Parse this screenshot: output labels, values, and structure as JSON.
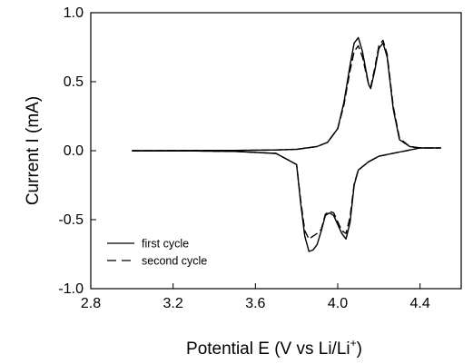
{
  "chart_data": {
    "type": "line",
    "title": "",
    "xlabel": "Potential  E  (V vs Li/Li",
    "xlabel_sup": "+",
    "xlabel_close": ")",
    "ylabel": "Current   I  (mA)",
    "xlim": [
      2.8,
      4.6
    ],
    "ylim": [
      -1.0,
      1.0
    ],
    "x_ticks": [
      2.8,
      3.2,
      3.6,
      4.0,
      4.4
    ],
    "x_tick_labels": [
      "2.8",
      "3.2",
      "3.6",
      "4.0",
      "4.4"
    ],
    "y_ticks": [
      -1.0,
      -0.5,
      0.0,
      0.5,
      1.0
    ],
    "y_tick_labels": [
      "-1.0",
      "-0.5",
      "0.0",
      "0.5",
      "1.0"
    ],
    "grid": false,
    "legend_position": "bottom-left",
    "series": [
      {
        "name": "first cycle",
        "style": "solid",
        "color": "#000000",
        "x": [
          3.0,
          3.5,
          3.7,
          3.8,
          3.9,
          3.95,
          4.0,
          4.03,
          4.06,
          4.08,
          4.1,
          4.12,
          4.15,
          4.16,
          4.18,
          4.2,
          4.22,
          4.24,
          4.27,
          4.3,
          4.35,
          4.4,
          4.5,
          4.5,
          4.4,
          4.3,
          4.2,
          4.15,
          4.1,
          4.08,
          4.06,
          4.04,
          4.02,
          3.98,
          3.96,
          3.94,
          3.92,
          3.9,
          3.88,
          3.86,
          3.84,
          3.82,
          3.8,
          3.7,
          3.5,
          3.3,
          3.0
        ],
        "y": [
          0.0,
          0.002,
          0.005,
          0.01,
          0.03,
          0.06,
          0.16,
          0.35,
          0.62,
          0.78,
          0.82,
          0.72,
          0.48,
          0.45,
          0.58,
          0.74,
          0.78,
          0.68,
          0.3,
          0.08,
          0.03,
          0.02,
          0.02,
          0.02,
          0.02,
          -0.01,
          -0.04,
          -0.08,
          -0.14,
          -0.25,
          -0.52,
          -0.64,
          -0.6,
          -0.47,
          -0.45,
          -0.47,
          -0.58,
          -0.68,
          -0.72,
          -0.73,
          -0.62,
          -0.38,
          -0.1,
          -0.02,
          -0.005,
          -0.002,
          -0.002
        ]
      },
      {
        "name": "second cycle",
        "style": "dashed",
        "color": "#000000",
        "x": [
          3.0,
          3.5,
          3.7,
          3.8,
          3.9,
          3.95,
          4.0,
          4.03,
          4.06,
          4.08,
          4.1,
          4.12,
          4.15,
          4.16,
          4.18,
          4.2,
          4.22,
          4.24,
          4.27,
          4.3,
          4.35,
          4.4,
          4.5,
          4.5,
          4.4,
          4.3,
          4.2,
          4.15,
          4.1,
          4.08,
          4.06,
          4.04,
          4.02,
          3.98,
          3.96,
          3.94,
          3.92,
          3.9,
          3.88,
          3.86,
          3.84,
          3.82,
          3.8,
          3.7,
          3.5,
          3.3,
          3.0
        ],
        "y": [
          0.0,
          0.002,
          0.005,
          0.01,
          0.03,
          0.06,
          0.16,
          0.33,
          0.58,
          0.72,
          0.76,
          0.68,
          0.48,
          0.46,
          0.6,
          0.76,
          0.8,
          0.7,
          0.32,
          0.09,
          0.03,
          0.02,
          0.02,
          0.02,
          0.02,
          -0.01,
          -0.04,
          -0.08,
          -0.14,
          -0.24,
          -0.48,
          -0.6,
          -0.58,
          -0.45,
          -0.44,
          -0.46,
          -0.57,
          -0.6,
          -0.62,
          -0.64,
          -0.58,
          -0.36,
          -0.1,
          -0.02,
          -0.005,
          -0.002,
          -0.002
        ]
      }
    ]
  }
}
